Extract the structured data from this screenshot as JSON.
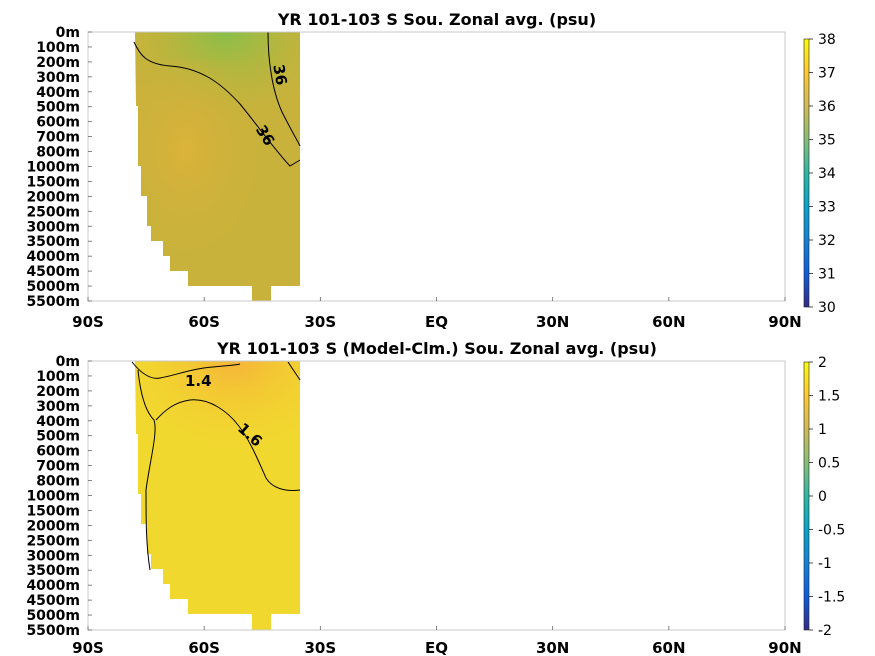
{
  "chart_data": [
    {
      "type": "heatmap",
      "title": "YR 101-103 S Sou. Zonal avg. (psu)",
      "x_ticks": [
        "90S",
        "60S",
        "30S",
        "EQ",
        "30N",
        "60N",
        "90N"
      ],
      "x_range": [
        -90,
        90
      ],
      "y_ticks": [
        "0m",
        "100m",
        "200m",
        "300m",
        "400m",
        "500m",
        "600m",
        "700m",
        "800m",
        "1000m",
        "1500m",
        "2000m",
        "2500m",
        "3000m",
        "3500m",
        "4000m",
        "4500m",
        "5000m",
        "5500m"
      ],
      "data_extent_lat": [
        -79,
        -35
      ],
      "colorbar": {
        "ticks": [
          "30",
          "31",
          "32",
          "33",
          "34",
          "35",
          "36",
          "37",
          "38"
        ],
        "range": [
          30,
          38
        ]
      },
      "field_values": {
        "surface_south": 35.2,
        "deep_interior": 36.4,
        "upper_north": 35.4
      },
      "contours": [
        {
          "level": 36,
          "labels": [
            "36",
            "36"
          ]
        }
      ]
    },
    {
      "type": "heatmap",
      "title": "YR 101-103 S (Model-Clm.) Sou. Zonal avg. (psu)",
      "x_ticks": [
        "90S",
        "60S",
        "30S",
        "EQ",
        "30N",
        "60N",
        "90N"
      ],
      "x_range": [
        -90,
        90
      ],
      "y_ticks": [
        "0m",
        "100m",
        "200m",
        "300m",
        "400m",
        "500m",
        "600m",
        "700m",
        "800m",
        "1000m",
        "1500m",
        "2000m",
        "2500m",
        "3000m",
        "3500m",
        "4000m",
        "4500m",
        "5000m",
        "5500m"
      ],
      "data_extent_lat": [
        -79,
        -35
      ],
      "colorbar": {
        "ticks": [
          "2",
          "1.5",
          "1",
          "0.5",
          "0",
          "-0.5",
          "-1",
          "-1.5",
          "-2"
        ],
        "range": [
          -2,
          2
        ]
      },
      "field_values": {
        "upper": 1.5,
        "deep": 1.8
      },
      "contours": [
        {
          "level": 1.4,
          "labels": [
            "1.4"
          ]
        },
        {
          "level": 1.6,
          "labels": [
            "1.6"
          ]
        }
      ]
    }
  ],
  "colors": {
    "salinity_gradient": [
      "#352a87",
      "#0f5cdd",
      "#1481d6",
      "#06a4ca",
      "#2eb7a4",
      "#87bf77",
      "#d1bb59",
      "#fec832",
      "#f9fb0e"
    ],
    "panel1_fill": "#c8b33c",
    "panel1_deep": "#d8b23a",
    "panel1_fresh": "#8cbf4e",
    "panel2_fill": "#f2d630",
    "panel2_upper": "#f8b93a"
  }
}
